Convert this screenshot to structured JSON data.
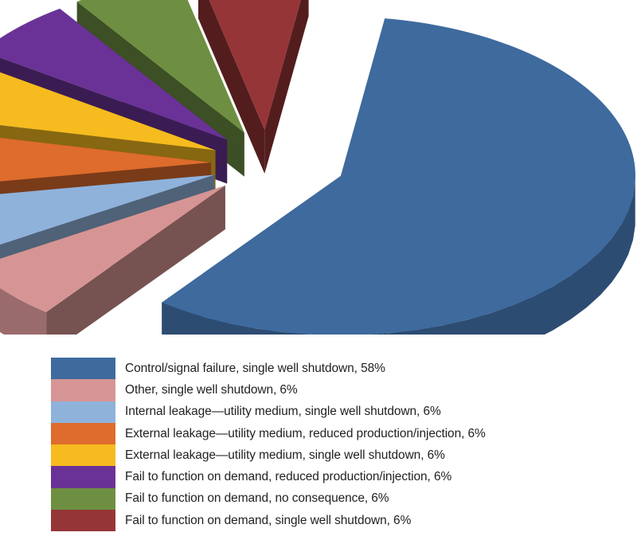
{
  "chart_data": {
    "type": "pie",
    "style": "3d-exploded",
    "title": "",
    "legend_position": "bottom-left",
    "categories": [
      "Control/signal failure, single well shutdown",
      "Other, single well shutdown",
      "Internal leakage—utility medium, single well shutdown",
      "External leakage—utility medium, reduced production/injection",
      "External leakage—utility medium, single well shutdown",
      "Fail to function on demand, reduced production/injection",
      "Fail to function on demand, no consequence",
      "Fail to function on demand, single well shutdown"
    ],
    "values": [
      58,
      6,
      6,
      6,
      6,
      6,
      6,
      6
    ],
    "unit": "%",
    "colors": [
      "#3e6a9e",
      "#d69594",
      "#8fb2db",
      "#de6c2c",
      "#f6bb1e",
      "#6a3296",
      "#6e8f41",
      "#963537"
    ]
  },
  "legend": {
    "items": [
      {
        "label": "Control/signal failure, single well shutdown, 58%",
        "color": "#3e6a9e"
      },
      {
        "label": "Other, single well shutdown, 6%",
        "color": "#d69594"
      },
      {
        "label": "Internal leakage—utility medium, single well shutdown, 6%",
        "color": "#8fb2db"
      },
      {
        "label": "External leakage—utility medium, reduced production/injection, 6%",
        "color": "#de6c2c"
      },
      {
        "label": "External leakage—utility medium, single well shutdown, 6%",
        "color": "#f6bb1e"
      },
      {
        "label": "Fail to function on demand, reduced production/injection, 6%",
        "color": "#6a3296"
      },
      {
        "label": "Fail to function on demand, no consequence, 6%",
        "color": "#6e8f41"
      },
      {
        "label": "Fail to function on demand, single well shutdown, 6%",
        "color": "#963537"
      }
    ]
  }
}
